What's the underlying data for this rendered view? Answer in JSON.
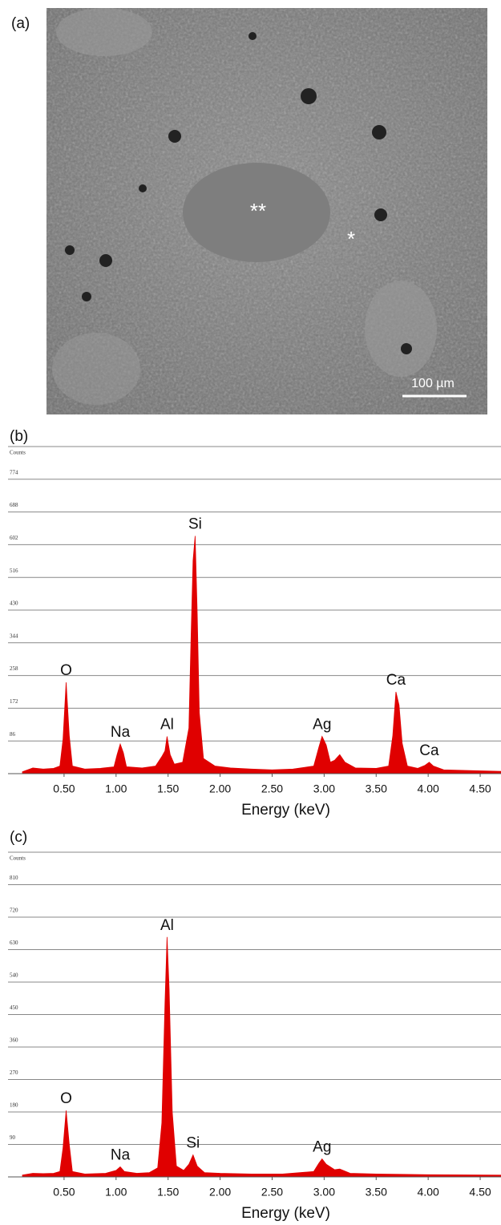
{
  "image_panel": {
    "label": "(a)",
    "markers": [
      "**",
      "*"
    ],
    "scale_bar": "100 µm"
  },
  "chart_data": [
    {
      "type": "area",
      "title": "(b)",
      "y_label": "Counts",
      "x_label": "Energy (keV)",
      "color": "#e00000",
      "grid": true,
      "xlim": [
        0.1,
        4.7
      ],
      "ylim": [
        0,
        860
      ],
      "xticks": [
        {
          "value": 0.5,
          "label": "0.50"
        },
        {
          "value": 1,
          "label": "1.00"
        },
        {
          "value": 1.5,
          "label": "1.50"
        },
        {
          "value": 2,
          "label": "2.00"
        },
        {
          "value": 2.5,
          "label": "2.50"
        },
        {
          "value": 3,
          "label": "3.00"
        },
        {
          "value": 3.5,
          "label": "3.50"
        },
        {
          "value": 4,
          "label": "4.00"
        },
        {
          "value": 4.5,
          "label": "4.50"
        }
      ],
      "yticks": [
        86,
        172,
        258,
        344,
        430,
        516,
        602,
        688,
        774
      ],
      "x": [
        0.1,
        0.2,
        0.3,
        0.4,
        0.46,
        0.49,
        0.52,
        0.55,
        0.58,
        0.7,
        0.85,
        0.98,
        1.01,
        1.04,
        1.07,
        1.1,
        1.25,
        1.38,
        1.44,
        1.47,
        1.49,
        1.52,
        1.56,
        1.64,
        1.7,
        1.72,
        1.74,
        1.76,
        1.78,
        1.8,
        1.84,
        1.95,
        2.1,
        2.3,
        2.5,
        2.7,
        2.9,
        2.95,
        2.98,
        3.02,
        3.06,
        3.1,
        3.15,
        3.2,
        3.3,
        3.5,
        3.62,
        3.66,
        3.69,
        3.72,
        3.75,
        3.8,
        3.9,
        3.97,
        4.01,
        4.05,
        4.15,
        4.4,
        4.7
      ],
      "values": [
        5,
        15,
        12,
        14,
        20,
        90,
        240,
        100,
        20,
        12,
        14,
        18,
        50,
        78,
        55,
        18,
        15,
        20,
        45,
        60,
        98,
        50,
        25,
        30,
        120,
        350,
        560,
        625,
        420,
        160,
        40,
        20,
        15,
        12,
        10,
        12,
        20,
        70,
        98,
        75,
        30,
        35,
        50,
        30,
        15,
        14,
        20,
        100,
        215,
        180,
        80,
        20,
        14,
        22,
        30,
        20,
        10,
        8,
        6
      ],
      "annotations": [
        {
          "text": "O",
          "x": 0.52
        },
        {
          "text": "Na",
          "x": 1.04
        },
        {
          "text": "Al",
          "x": 1.49
        },
        {
          "text": "Si",
          "x": 1.76
        },
        {
          "text": "Ag",
          "x": 2.98
        },
        {
          "text": "Ca",
          "x": 3.69
        },
        {
          "text": "Ca",
          "x": 4.01
        }
      ]
    },
    {
      "type": "area",
      "title": "(c)",
      "y_label": "Counts",
      "x_label": "Energy (keV)",
      "color": "#e00000",
      "grid": true,
      "xlim": [
        0.1,
        4.7
      ],
      "ylim": [
        0,
        900
      ],
      "xticks": [
        {
          "value": 0.5,
          "label": "0.50"
        },
        {
          "value": 1,
          "label": "1.00"
        },
        {
          "value": 1.5,
          "label": "1.50"
        },
        {
          "value": 2,
          "label": "2.00"
        },
        {
          "value": 2.5,
          "label": "2.50"
        },
        {
          "value": 3,
          "label": "3.00"
        },
        {
          "value": 3.5,
          "label": "3.50"
        },
        {
          "value": 4,
          "label": "4.00"
        },
        {
          "value": 4.5,
          "label": "4.50"
        }
      ],
      "yticks": [
        90,
        180,
        270,
        360,
        450,
        540,
        630,
        720,
        810
      ],
      "x": [
        0.1,
        0.2,
        0.3,
        0.4,
        0.46,
        0.49,
        0.52,
        0.55,
        0.58,
        0.7,
        0.9,
        1.0,
        1.04,
        1.08,
        1.2,
        1.32,
        1.4,
        1.44,
        1.47,
        1.49,
        1.51,
        1.54,
        1.58,
        1.65,
        1.7,
        1.74,
        1.78,
        1.85,
        2.0,
        2.3,
        2.6,
        2.9,
        2.95,
        2.98,
        3.02,
        3.1,
        3.15,
        3.25,
        3.5,
        4.0,
        4.7
      ],
      "values": [
        5,
        10,
        9,
        10,
        15,
        80,
        184,
        90,
        15,
        8,
        10,
        18,
        28,
        15,
        10,
        12,
        25,
        150,
        480,
        665,
        520,
        180,
        30,
        18,
        35,
        61,
        30,
        12,
        10,
        8,
        8,
        15,
        38,
        50,
        35,
        20,
        22,
        10,
        8,
        6,
        5
      ],
      "annotations": [
        {
          "text": "O",
          "x": 0.52
        },
        {
          "text": "Na",
          "x": 1.04
        },
        {
          "text": "Al",
          "x": 1.49
        },
        {
          "text": "Si",
          "x": 1.74
        },
        {
          "text": "Ag",
          "x": 2.98
        }
      ]
    }
  ]
}
